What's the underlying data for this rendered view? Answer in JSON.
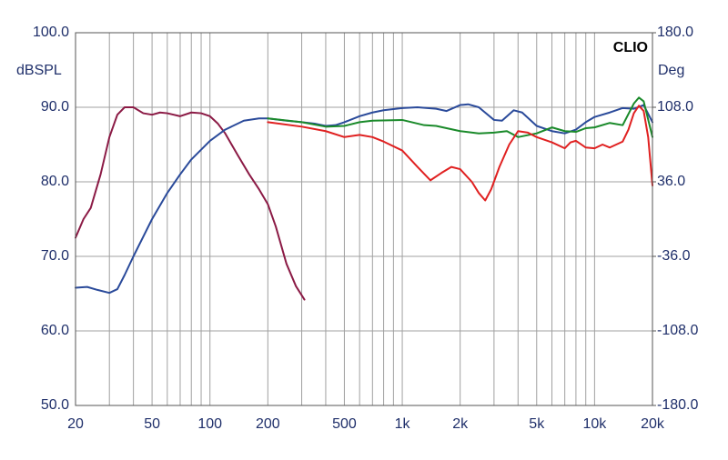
{
  "chart_data": {
    "type": "line",
    "brand": "CLIO",
    "y_label": "dBSPL",
    "y2_label": "Deg",
    "xscale": "log",
    "grid": true,
    "xlim": [
      20,
      20000
    ],
    "ylim": [
      50,
      100
    ],
    "y2lim": [
      -180,
      180
    ],
    "xticks": [
      20,
      50,
      100,
      200,
      500,
      {
        "value": 1000,
        "label": "1k"
      },
      {
        "value": 2000,
        "label": "2k"
      },
      {
        "value": 5000,
        "label": "5k"
      },
      {
        "value": 10000,
        "label": "10k"
      },
      {
        "value": 20000,
        "label": "20k"
      }
    ],
    "xgrid": [
      30,
      40,
      60,
      70,
      80,
      90,
      300,
      400,
      600,
      700,
      800,
      900,
      3000,
      4000,
      6000,
      7000,
      8000,
      9000
    ],
    "yticks": [
      {
        "value": 50,
        "label": "50.0"
      },
      {
        "value": 60,
        "label": "60.0"
      },
      {
        "value": 70,
        "label": "70.0"
      },
      {
        "value": 80,
        "label": "80.0"
      },
      {
        "value": 90,
        "label": "90.0"
      },
      {
        "value": 100,
        "label": "100.0"
      }
    ],
    "y2ticks": [
      {
        "value": -180,
        "label": "-180.0"
      },
      {
        "value": -108,
        "label": "-108.0"
      },
      {
        "value": -36,
        "label": "-36.0"
      },
      {
        "value": 36,
        "label": "36.0"
      },
      {
        "value": 108,
        "label": "108.0"
      },
      {
        "value": 180,
        "label": "180.0"
      }
    ],
    "series": [
      {
        "color": "#8b1a45",
        "x": [
          20,
          22,
          24,
          27,
          30,
          33,
          36,
          40,
          45,
          50,
          55,
          60,
          70,
          80,
          90,
          100,
          110,
          120,
          140,
          160,
          180,
          200,
          220,
          250,
          280,
          310
        ],
        "values": [
          72.5,
          75,
          76.5,
          81,
          86,
          89,
          90,
          90,
          89.2,
          89,
          89.3,
          89.2,
          88.8,
          89.3,
          89.2,
          88.8,
          87.8,
          86.5,
          83.5,
          81,
          79,
          77,
          74,
          69,
          66,
          64.2
        ]
      },
      {
        "color": "#2a4a9a",
        "x": [
          20,
          23,
          26,
          30,
          33,
          36,
          40,
          50,
          60,
          70,
          80,
          100,
          120,
          150,
          180,
          200,
          250,
          300,
          350,
          400,
          450,
          500,
          600,
          700,
          800,
          1000,
          1200,
          1500,
          1700,
          2000,
          2200,
          2500,
          3000,
          3300,
          3800,
          4200,
          5000,
          6000,
          7000,
          8000,
          9000,
          10000,
          12000,
          14000,
          16000,
          18000,
          20000
        ],
        "values": [
          65.8,
          65.9,
          65.5,
          65.1,
          65.6,
          67.5,
          70,
          75,
          78.5,
          81,
          83,
          85.5,
          87,
          88.2,
          88.5,
          88.5,
          88.2,
          88,
          87.8,
          87.5,
          87.6,
          88,
          88.8,
          89.3,
          89.6,
          89.9,
          90,
          89.8,
          89.5,
          90.3,
          90.4,
          90,
          88.3,
          88.2,
          89.6,
          89.3,
          87.5,
          86.8,
          86.5,
          87,
          88,
          88.7,
          89.3,
          89.9,
          89.8,
          90.3,
          88
        ]
      },
      {
        "color": "#1a8a2a",
        "x": [
          200,
          300,
          400,
          500,
          600,
          700,
          1000,
          1300,
          1500,
          2000,
          2500,
          3000,
          3500,
          4000,
          5000,
          6000,
          7000,
          8000,
          9000,
          10000,
          12000,
          14000,
          16000,
          17000,
          18000,
          20000
        ],
        "values": [
          88.5,
          88,
          87.4,
          87.5,
          88,
          88.2,
          88.3,
          87.6,
          87.5,
          86.8,
          86.5,
          86.6,
          86.8,
          86,
          86.5,
          87.3,
          86.8,
          86.7,
          87.2,
          87.3,
          87.9,
          87.6,
          90.5,
          91.3,
          90.8,
          86
        ]
      },
      {
        "color": "#e02020",
        "x": [
          200,
          300,
          400,
          500,
          600,
          700,
          800,
          1000,
          1200,
          1400,
          1600,
          1800,
          2000,
          2300,
          2500,
          2700,
          2900,
          3200,
          3600,
          4000,
          4500,
          5000,
          6000,
          7000,
          7500,
          8000,
          9000,
          10000,
          11000,
          12000,
          14000,
          15000,
          16000,
          17000,
          18000,
          19000,
          20000
        ],
        "values": [
          88,
          87.4,
          86.8,
          86,
          86.3,
          86,
          85.4,
          84.2,
          82,
          80.2,
          81.2,
          82,
          81.7,
          80,
          78.5,
          77.5,
          79,
          82,
          85,
          86.8,
          86.6,
          86,
          85.3,
          84.5,
          85.3,
          85.5,
          84.6,
          84.5,
          85,
          84.6,
          85.4,
          87,
          89.2,
          90.2,
          89.5,
          86,
          79.5
        ]
      }
    ]
  }
}
